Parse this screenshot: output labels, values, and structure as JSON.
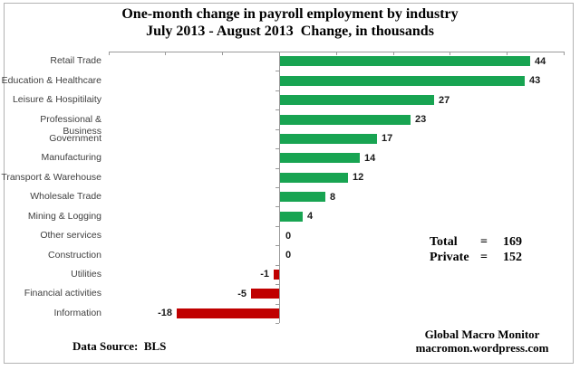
{
  "title": {
    "line1": "One-month change in payroll employment by industry",
    "line2": "July 2013 - August 2013  Change, in thousands"
  },
  "chart_data": {
    "type": "bar",
    "orientation": "horizontal",
    "title": "One-month change in payroll employment by industry, July 2013 - August 2013, change in thousands",
    "categories": [
      "Retail Trade",
      "Education & Healthcare",
      "Leisure & Hospitilaity",
      "Professional & Business",
      "Government",
      "Manufacturing",
      "Transport & Warehouse",
      "Wholesale Trade",
      "Mining & Logging",
      "Other services",
      "Construction",
      "Utilities",
      "Financial activities",
      "Information"
    ],
    "values": [
      44,
      43,
      27,
      23,
      17,
      14,
      12,
      8,
      4,
      0,
      0,
      -1,
      -5,
      -18
    ],
    "xlim": [
      -30,
      50
    ],
    "tick_interval": 10,
    "axis_tick_labels_shown": false,
    "grid": false,
    "legend": false,
    "positive_color": "#18a452",
    "negative_color": "#c00000",
    "axis_color": "#9a9a9a",
    "category_text_color": "#3f3f3f",
    "value_text_color": "#1a1a1a"
  },
  "totals": {
    "total_label": "Total",
    "total_eq": "=",
    "total_value": "169",
    "private_label": "Private",
    "private_eq": "=",
    "private_value": "152"
  },
  "footer": {
    "data_source": "Data Source:  BLS",
    "attribution_line1": "Global Macro Monitor",
    "attribution_line2": "macromon.wordpress.com"
  }
}
